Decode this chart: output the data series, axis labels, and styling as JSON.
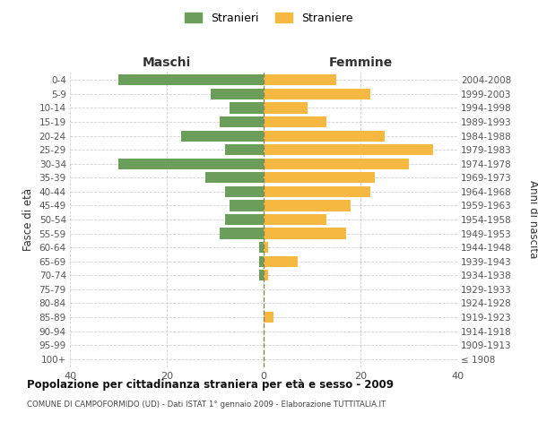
{
  "age_groups": [
    "100+",
    "95-99",
    "90-94",
    "85-89",
    "80-84",
    "75-79",
    "70-74",
    "65-69",
    "60-64",
    "55-59",
    "50-54",
    "45-49",
    "40-44",
    "35-39",
    "30-34",
    "25-29",
    "20-24",
    "15-19",
    "10-14",
    "5-9",
    "0-4"
  ],
  "birth_years": [
    "≤ 1908",
    "1909-1913",
    "1914-1918",
    "1919-1923",
    "1924-1928",
    "1929-1933",
    "1934-1938",
    "1939-1943",
    "1944-1948",
    "1949-1953",
    "1954-1958",
    "1959-1963",
    "1964-1968",
    "1969-1973",
    "1974-1978",
    "1979-1983",
    "1984-1988",
    "1989-1993",
    "1994-1998",
    "1999-2003",
    "2004-2008"
  ],
  "males": [
    0,
    0,
    0,
    0,
    0,
    0,
    1,
    1,
    1,
    9,
    8,
    7,
    8,
    12,
    30,
    8,
    17,
    9,
    7,
    11,
    30
  ],
  "females": [
    0,
    0,
    0,
    2,
    0,
    0,
    1,
    7,
    1,
    17,
    13,
    18,
    22,
    23,
    30,
    35,
    25,
    13,
    9,
    22,
    15
  ],
  "male_color": "#6a9e5a",
  "female_color": "#f5b942",
  "grid_color": "#cccccc",
  "center_line_color": "#888855",
  "title": "Popolazione per cittadinanza straniera per età e sesso - 2009",
  "subtitle": "COMUNE DI CAMPOFORMIDO (UD) - Dati ISTAT 1° gennaio 2009 - Elaborazione TUTTITALIA.IT",
  "label_maschi": "Maschi",
  "label_femmine": "Femmine",
  "ylabel_left": "Fasce di età",
  "ylabel_right": "Anni di nascita",
  "legend_males": "Stranieri",
  "legend_females": "Straniere",
  "xlim": 40
}
